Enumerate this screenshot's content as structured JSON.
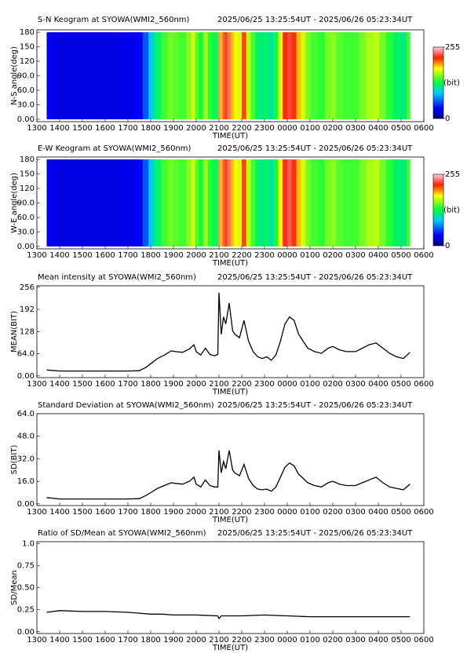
{
  "chart_data": [
    {
      "type": "heatmap",
      "title": "S-N Keogram at SYOWA(WMI2_560nm)",
      "subtitle": "2025/06/25 13:25:54UT - 2025/06/26 05:23:34UT",
      "x_label": "TIME(UT)",
      "y_label": "N-S angle(deg)",
      "x": [
        13.43,
        14,
        15,
        16,
        17,
        17.5,
        17.8,
        18,
        18.3,
        18.6,
        18.9,
        19.1,
        19.4,
        19.7,
        19.9,
        20.0,
        20.2,
        20.4,
        20.6,
        20.8,
        20.95,
        21.0,
        21.1,
        21.2,
        21.3,
        21.45,
        21.6,
        21.7,
        21.9,
        22.1,
        22.3,
        22.5,
        22.7,
        22.9,
        23.1,
        23.3,
        23.5,
        23.7,
        23.9,
        24.1,
        24.3,
        24.5,
        24.7,
        24.9,
        25.2,
        25.5,
        25.8,
        26.0,
        26.3,
        26.6,
        27.0,
        27.3,
        27.6,
        27.9,
        28.2,
        28.5,
        28.8,
        29.1,
        29.39
      ],
      "values": [
        35,
        30,
        30,
        30,
        32,
        35,
        60,
        90,
        120,
        140,
        150,
        145,
        140,
        155,
        170,
        145,
        130,
        160,
        135,
        125,
        130,
        240,
        190,
        230,
        210,
        235,
        190,
        180,
        170,
        210,
        165,
        140,
        120,
        115,
        120,
        105,
        130,
        170,
        215,
        225,
        220,
        190,
        170,
        150,
        140,
        135,
        150,
        155,
        145,
        140,
        140,
        150,
        160,
        165,
        150,
        135,
        120,
        115,
        140
      ],
      "xlim": [
        13,
        30
      ],
      "ylim": [
        -5,
        185
      ],
      "xticks": [
        {
          "value": 13,
          "label": "1300"
        },
        {
          "value": 14,
          "label": "1400"
        },
        {
          "value": 15,
          "label": "1500"
        },
        {
          "value": 16,
          "label": "1600"
        },
        {
          "value": 17,
          "label": "1700"
        },
        {
          "value": 18,
          "label": "1800"
        },
        {
          "value": 19,
          "label": "1900"
        },
        {
          "value": 20,
          "label": "2000"
        },
        {
          "value": 21,
          "label": "2100"
        },
        {
          "value": 22,
          "label": "2200"
        },
        {
          "value": 23,
          "label": "2300"
        },
        {
          "value": 24,
          "label": "0000"
        },
        {
          "value": 25,
          "label": "0100"
        },
        {
          "value": 26,
          "label": "0200"
        },
        {
          "value": 27,
          "label": "0300"
        },
        {
          "value": 28,
          "label": "0400"
        },
        {
          "value": 29,
          "label": "0500"
        },
        {
          "value": 30,
          "label": "0600"
        }
      ],
      "yticks": [
        {
          "value": 0,
          "label": "0.00"
        },
        {
          "value": 30,
          "label": "30.0"
        },
        {
          "value": 60,
          "label": "60.0"
        },
        {
          "value": 90,
          "label": "90.0"
        },
        120,
        150,
        180
      ],
      "colorbar": {
        "ticks": [
          0,
          255
        ],
        "label": "(bit)"
      }
    },
    {
      "type": "heatmap",
      "title": "E-W Keogram at SYOWA(WMI2_560nm)",
      "subtitle": "2025/06/25 13:25:54UT - 2025/06/26 05:23:34UT",
      "x_label": "TIME(UT)",
      "y_label": "W-E angle(deg)",
      "x": [
        13.43,
        14,
        15,
        16,
        17,
        17.5,
        17.8,
        18,
        18.3,
        18.6,
        18.9,
        19.1,
        19.4,
        19.7,
        19.9,
        20.0,
        20.2,
        20.4,
        20.6,
        20.8,
        20.95,
        21.0,
        21.1,
        21.2,
        21.3,
        21.45,
        21.6,
        21.7,
        21.9,
        22.1,
        22.3,
        22.5,
        22.7,
        22.9,
        23.1,
        23.3,
        23.5,
        23.7,
        23.9,
        24.1,
        24.3,
        24.5,
        24.7,
        24.9,
        25.2,
        25.5,
        25.8,
        26.0,
        26.3,
        26.6,
        27.0,
        27.3,
        27.6,
        27.9,
        28.2,
        28.5,
        28.8,
        29.1,
        29.39
      ],
      "values": [
        35,
        30,
        30,
        30,
        32,
        35,
        60,
        90,
        120,
        140,
        150,
        145,
        140,
        155,
        170,
        145,
        130,
        160,
        135,
        125,
        130,
        240,
        190,
        230,
        210,
        235,
        190,
        180,
        170,
        210,
        165,
        140,
        120,
        115,
        120,
        105,
        130,
        180,
        220,
        230,
        220,
        190,
        170,
        150,
        140,
        135,
        150,
        155,
        145,
        140,
        140,
        150,
        160,
        165,
        150,
        135,
        120,
        115,
        140
      ],
      "xlim": [
        13,
        30
      ],
      "ylim": [
        -5,
        185
      ],
      "xticks": [
        {
          "value": 13,
          "label": "1300"
        },
        {
          "value": 14,
          "label": "1400"
        },
        {
          "value": 15,
          "label": "1500"
        },
        {
          "value": 16,
          "label": "1600"
        },
        {
          "value": 17,
          "label": "1700"
        },
        {
          "value": 18,
          "label": "1800"
        },
        {
          "value": 19,
          "label": "1900"
        },
        {
          "value": 20,
          "label": "2000"
        },
        {
          "value": 21,
          "label": "2100"
        },
        {
          "value": 22,
          "label": "2200"
        },
        {
          "value": 23,
          "label": "2300"
        },
        {
          "value": 24,
          "label": "0000"
        },
        {
          "value": 25,
          "label": "0100"
        },
        {
          "value": 26,
          "label": "0200"
        },
        {
          "value": 27,
          "label": "0300"
        },
        {
          "value": 28,
          "label": "0400"
        },
        {
          "value": 29,
          "label": "0500"
        },
        {
          "value": 30,
          "label": "0600"
        }
      ],
      "yticks": [
        {
          "value": 0,
          "label": "0.00"
        },
        {
          "value": 30,
          "label": "30.0"
        },
        {
          "value": 60,
          "label": "60.0"
        },
        {
          "value": 90,
          "label": "90.0"
        },
        120,
        150,
        180
      ],
      "colorbar": {
        "ticks": [
          0,
          255
        ],
        "label": "(bit)"
      }
    },
    {
      "type": "line",
      "title": "Mean intensity at SYOWA(WMI2_560nm)",
      "subtitle": "2025/06/25 13:25:54UT - 2025/06/26 05:23:34UT",
      "x_label": "TIME(UT)",
      "y_label": "MEAN(BIT)",
      "color": "#000000",
      "x": [
        13.43,
        14,
        15,
        16,
        17,
        17.5,
        17.8,
        18,
        18.3,
        18.6,
        18.9,
        19.1,
        19.4,
        19.7,
        19.9,
        20.0,
        20.2,
        20.4,
        20.6,
        20.8,
        20.95,
        21.0,
        21.1,
        21.2,
        21.3,
        21.45,
        21.6,
        21.7,
        21.9,
        22.1,
        22.3,
        22.5,
        22.7,
        22.9,
        23.1,
        23.3,
        23.5,
        23.7,
        23.9,
        24.1,
        24.3,
        24.5,
        24.7,
        24.9,
        25.2,
        25.5,
        25.8,
        26.0,
        26.3,
        26.6,
        27.0,
        27.3,
        27.6,
        27.9,
        28.2,
        28.5,
        28.8,
        29.1,
        29.39
      ],
      "values": [
        17,
        14,
        14,
        14,
        14,
        15,
        25,
        35,
        50,
        60,
        72,
        70,
        68,
        78,
        90,
        70,
        60,
        80,
        62,
        58,
        62,
        240,
        120,
        170,
        150,
        210,
        130,
        120,
        110,
        160,
        100,
        70,
        55,
        50,
        55,
        45,
        60,
        100,
        150,
        170,
        160,
        120,
        100,
        80,
        70,
        65,
        80,
        85,
        75,
        70,
        70,
        80,
        90,
        95,
        80,
        65,
        55,
        50,
        68
      ],
      "xlim": [
        13,
        30
      ],
      "ylim": [
        -5,
        260
      ],
      "xticks": [
        {
          "value": 13,
          "label": "1300"
        },
        {
          "value": 14,
          "label": "1400"
        },
        {
          "value": 15,
          "label": "1500"
        },
        {
          "value": 16,
          "label": "1600"
        },
        {
          "value": 17,
          "label": "1700"
        },
        {
          "value": 18,
          "label": "1800"
        },
        {
          "value": 19,
          "label": "1900"
        },
        {
          "value": 20,
          "label": "2000"
        },
        {
          "value": 21,
          "label": "2100"
        },
        {
          "value": 22,
          "label": "2200"
        },
        {
          "value": 23,
          "label": "2300"
        },
        {
          "value": 24,
          "label": "0000"
        },
        {
          "value": 25,
          "label": "0100"
        },
        {
          "value": 26,
          "label": "0200"
        },
        {
          "value": 27,
          "label": "0300"
        },
        {
          "value": 28,
          "label": "0400"
        },
        {
          "value": 29,
          "label": "0500"
        },
        {
          "value": 30,
          "label": "0600"
        }
      ],
      "yticks": [
        {
          "value": 0,
          "label": "0.00"
        },
        {
          "value": 64,
          "label": "64.0"
        },
        128,
        192,
        256
      ]
    },
    {
      "type": "line",
      "title": "Standard Deviation at SYOWA(WMI2_560nm)",
      "subtitle": "2025/06/25 13:25:54UT - 2025/06/26 05:23:34UT",
      "x_label": "TIME(UT)",
      "y_label": "SD(BIT)",
      "color": "#000000",
      "x": [
        13.43,
        14,
        15,
        16,
        17,
        17.5,
        17.8,
        18,
        18.3,
        18.6,
        18.9,
        19.1,
        19.4,
        19.7,
        19.9,
        20.0,
        20.2,
        20.4,
        20.6,
        20.8,
        20.95,
        21.0,
        21.1,
        21.2,
        21.3,
        21.45,
        21.6,
        21.7,
        21.9,
        22.1,
        22.3,
        22.5,
        22.7,
        22.9,
        23.1,
        23.3,
        23.5,
        23.7,
        23.9,
        24.1,
        24.3,
        24.5,
        24.7,
        24.9,
        25.2,
        25.5,
        25.8,
        26.0,
        26.3,
        26.6,
        27.0,
        27.3,
        27.6,
        27.9,
        28.2,
        28.5,
        28.8,
        29.1,
        29.39
      ],
      "values": [
        4.5,
        3.5,
        3.5,
        3.5,
        3.5,
        3.7,
        6,
        8,
        11,
        13,
        15,
        14.5,
        14,
        16,
        19,
        14,
        12,
        17,
        13,
        12,
        12,
        38,
        22,
        30,
        25,
        38,
        24,
        22,
        20,
        28,
        18,
        13,
        10.5,
        10,
        10.5,
        9,
        12,
        19,
        26,
        29,
        27,
        21,
        18,
        15,
        13,
        12,
        15,
        16,
        14,
        13,
        13,
        15,
        17,
        19,
        15,
        12,
        11,
        10,
        14
      ],
      "xlim": [
        13,
        30
      ],
      "ylim": [
        -1.2,
        64
      ],
      "xticks": [
        {
          "value": 13,
          "label": "1300"
        },
        {
          "value": 14,
          "label": "1400"
        },
        {
          "value": 15,
          "label": "1500"
        },
        {
          "value": 16,
          "label": "1600"
        },
        {
          "value": 17,
          "label": "1700"
        },
        {
          "value": 18,
          "label": "1800"
        },
        {
          "value": 19,
          "label": "1900"
        },
        {
          "value": 20,
          "label": "2000"
        },
        {
          "value": 21,
          "label": "2100"
        },
        {
          "value": 22,
          "label": "2200"
        },
        {
          "value": 23,
          "label": "2300"
        },
        {
          "value": 24,
          "label": "0000"
        },
        {
          "value": 25,
          "label": "0100"
        },
        {
          "value": 26,
          "label": "0200"
        },
        {
          "value": 27,
          "label": "0300"
        },
        {
          "value": 28,
          "label": "0400"
        },
        {
          "value": 29,
          "label": "0500"
        },
        {
          "value": 30,
          "label": "0600"
        }
      ],
      "yticks": [
        {
          "value": 0,
          "label": "0.00"
        },
        {
          "value": 16,
          "label": "16.0"
        },
        {
          "value": 32,
          "label": "32.0"
        },
        {
          "value": 48,
          "label": "48.0"
        },
        {
          "value": 64,
          "label": "64.0"
        }
      ]
    },
    {
      "type": "line",
      "title": "Ratio of SD/Mean at SYOWA(WMI2_560nm)",
      "subtitle": "2025/06/25 13:25:54UT - 2025/06/26 05:23:34UT",
      "x_label": "TIME(UT)",
      "y_label": "SD/Mean",
      "color": "#000000",
      "x": [
        13.43,
        14,
        15,
        16,
        17,
        17.5,
        18,
        18.5,
        19,
        20,
        20.95,
        21.0,
        21.1,
        22,
        23,
        24,
        25,
        26,
        27,
        28,
        29,
        29.39
      ],
      "values": [
        0.22,
        0.24,
        0.23,
        0.23,
        0.22,
        0.21,
        0.2,
        0.2,
        0.19,
        0.19,
        0.18,
        0.15,
        0.18,
        0.18,
        0.19,
        0.18,
        0.17,
        0.17,
        0.17,
        0.17,
        0.17,
        0.17
      ],
      "xlim": [
        13,
        30
      ],
      "ylim": [
        -0.02,
        1.02
      ],
      "xticks": [
        {
          "value": 13,
          "label": "1300"
        },
        {
          "value": 14,
          "label": "1400"
        },
        {
          "value": 15,
          "label": "1500"
        },
        {
          "value": 16,
          "label": "1600"
        },
        {
          "value": 17,
          "label": "1700"
        },
        {
          "value": 18,
          "label": "1800"
        },
        {
          "value": 19,
          "label": "1900"
        },
        {
          "value": 20,
          "label": "2000"
        },
        {
          "value": 21,
          "label": "2100"
        },
        {
          "value": 22,
          "label": "2200"
        },
        {
          "value": 23,
          "label": "2300"
        },
        {
          "value": 24,
          "label": "0000"
        },
        {
          "value": 25,
          "label": "0100"
        },
        {
          "value": 26,
          "label": "0200"
        },
        {
          "value": 27,
          "label": "0300"
        },
        {
          "value": 28,
          "label": "0400"
        },
        {
          "value": 29,
          "label": "0500"
        },
        {
          "value": 30,
          "label": "0600"
        }
      ],
      "yticks": [
        {
          "value": 0,
          "label": "0.00"
        },
        0.25,
        {
          "value": 0.5,
          "label": "0.50"
        },
        0.75,
        {
          "value": 1,
          "label": "1.0"
        }
      ]
    }
  ]
}
